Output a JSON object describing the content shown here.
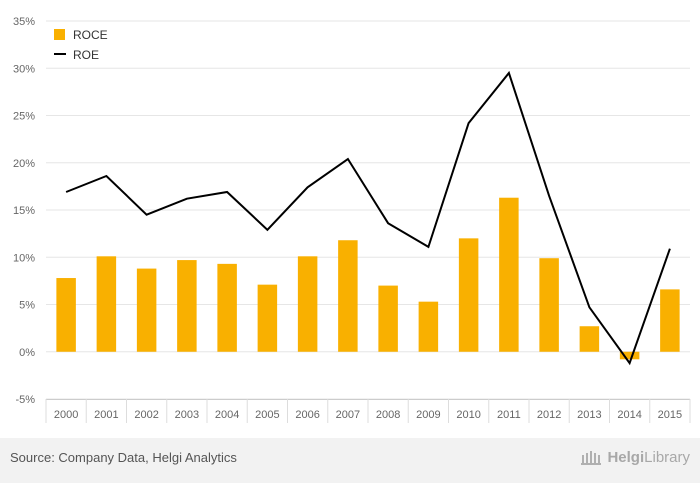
{
  "chart_data": {
    "type": "bar",
    "categories": [
      "2000",
      "2001",
      "2002",
      "2003",
      "2004",
      "2005",
      "2006",
      "2007",
      "2008",
      "2009",
      "2010",
      "2011",
      "2012",
      "2013",
      "2014",
      "2015"
    ],
    "series": [
      {
        "name": "ROCE",
        "type": "bar",
        "color": "#f9b000",
        "values": [
          7.8,
          10.1,
          8.8,
          9.7,
          9.3,
          7.1,
          10.1,
          11.8,
          7.0,
          5.3,
          12.0,
          16.3,
          9.9,
          2.7,
          -0.8,
          6.6
        ]
      },
      {
        "name": "ROE",
        "type": "line",
        "color": "#000000",
        "values": [
          16.9,
          18.6,
          14.5,
          16.2,
          16.9,
          12.9,
          17.4,
          20.4,
          13.6,
          11.1,
          24.2,
          29.5,
          16.5,
          4.7,
          -1.2,
          10.9
        ]
      }
    ],
    "y_ticks": [
      "35%",
      "30%",
      "25%",
      "20%",
      "15%",
      "10%",
      "5%",
      "0%",
      "-5%"
    ],
    "ylim": [
      -5,
      35
    ],
    "y_unit": "%",
    "grid": true,
    "legend_position": "top-left"
  },
  "footer": {
    "source": "Source: Company Data, Helgi Analytics",
    "brand_bold": "Helgi",
    "brand_thin": "Library",
    "brand_icon": "library-building-icon"
  }
}
